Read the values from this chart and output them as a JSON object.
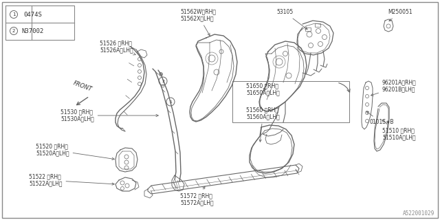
{
  "bg_color": "#ffffff",
  "line_color": "#666666",
  "text_color": "#333333",
  "diagram_note": "A522001029",
  "part_items": [
    {
      "circle": "1",
      "code": "0474S"
    },
    {
      "circle": "2",
      "code": "N37002"
    }
  ]
}
